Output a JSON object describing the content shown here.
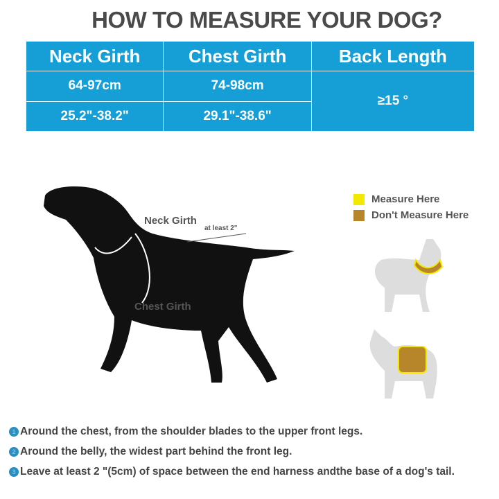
{
  "title": "HOW TO MEASURE YOUR DOG?",
  "table": {
    "headers": [
      "Neck Girth",
      "Chest Girth",
      "Back Length"
    ],
    "rows": [
      [
        "64-97cm",
        "74-98cm"
      ],
      [
        "25.2\"-38.2\"",
        "29.1\"-38.6\""
      ]
    ],
    "back_length": "≥15 °"
  },
  "diagram": {
    "neck_label": "Neck Girth",
    "gap_label": "at least 2\"",
    "chest_label": "Chest Girth"
  },
  "legend": [
    {
      "label": "Measure Here",
      "color": "#f5e800"
    },
    {
      "label": "Don't Measure Here",
      "color": "#b8862a"
    }
  ],
  "steps": [
    {
      "num": "1",
      "text": "Around the chest, from the shoulder blades to the upper front legs."
    },
    {
      "num": "2",
      "text": "Around the belly, the widest part behind the front leg."
    },
    {
      "num": "3",
      "text": "Leave at least 2 \"(5cm) of space between the end harness andthe base of a dog's tail."
    }
  ]
}
